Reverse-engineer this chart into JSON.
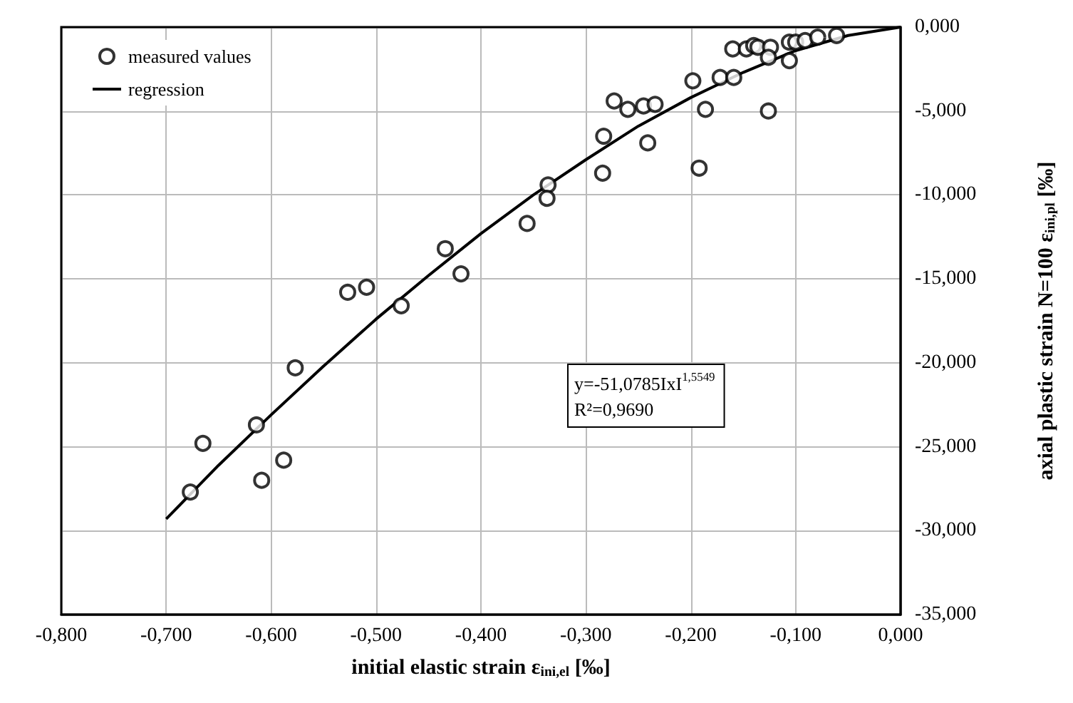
{
  "chart_data": {
    "type": "scatter",
    "xlabel": "initial elastic strain ε$_{ini,el}$ [‰]",
    "ylabel": "axial plastic strain N=100 ε$_{ini,pl}$ [‰]",
    "xlim": [
      -0.8,
      0
    ],
    "ylim": [
      -35,
      0
    ],
    "xticks": [
      {
        "value": -0.8,
        "label": "-0,800"
      },
      {
        "value": -0.7,
        "label": "-0,700"
      },
      {
        "value": -0.6,
        "label": "-0,600"
      },
      {
        "value": -0.5,
        "label": "-0,500"
      },
      {
        "value": -0.4,
        "label": "-0,400"
      },
      {
        "value": -0.3,
        "label": "-0,300"
      },
      {
        "value": -0.2,
        "label": "-0,200"
      },
      {
        "value": -0.1,
        "label": "-0,100"
      },
      {
        "value": 0,
        "label": "0,000"
      }
    ],
    "yticks": [
      {
        "value": -35,
        "label": "-35,000"
      },
      {
        "value": -30,
        "label": "-30,000"
      },
      {
        "value": -25,
        "label": "-25,000"
      },
      {
        "value": -20,
        "label": "-20,000"
      },
      {
        "value": -15,
        "label": "-15,000"
      },
      {
        "value": -10,
        "label": "-10,000"
      },
      {
        "value": -5,
        "label": "-5,000"
      },
      {
        "value": 0,
        "label": "0,000"
      }
    ],
    "grid": true,
    "legend": "top left",
    "annotations": [
      "y=-51,0785IxI$^{1,5549}$",
      "R²=0,9690"
    ],
    "series": [
      {
        "name": "measured values",
        "marker": "circle",
        "color": "#000000",
        "x": [
          -0.677,
          -0.665,
          -0.614,
          -0.609,
          -0.588,
          -0.577,
          -0.527,
          -0.509,
          -0.476,
          -0.434,
          -0.419,
          -0.356,
          -0.336,
          -0.337,
          -0.284,
          -0.283,
          -0.273,
          -0.26,
          -0.245,
          -0.234,
          -0.241,
          -0.198,
          -0.192,
          -0.186,
          -0.172,
          -0.159,
          -0.16,
          -0.147,
          -0.14,
          -0.136,
          -0.124,
          -0.126,
          -0.126,
          -0.106,
          -0.106,
          -0.1,
          -0.091,
          -0.079,
          -0.061
        ],
        "values": [
          -27.7,
          -24.8,
          -23.7,
          -27.0,
          -25.8,
          -20.3,
          -15.8,
          -15.5,
          -16.6,
          -13.2,
          -14.7,
          -11.7,
          -9.4,
          -10.2,
          -8.7,
          -6.5,
          -4.4,
          -4.9,
          -4.7,
          -4.6,
          -6.9,
          -3.2,
          -8.4,
          -4.9,
          -3.0,
          -3.0,
          -1.3,
          -1.3,
          -1.1,
          -1.2,
          -1.2,
          -1.8,
          -5.0,
          -2.0,
          -0.9,
          -0.9,
          -0.8,
          -0.6,
          -0.5
        ]
      },
      {
        "name": "regression",
        "type": "line",
        "marker": "none",
        "line_style": "solid",
        "color": "#000000",
        "x": [
          -0.7,
          -0.65,
          -0.6,
          -0.55,
          -0.5,
          -0.45,
          -0.4,
          -0.35,
          -0.3,
          -0.25,
          -0.2,
          -0.15,
          -0.1,
          -0.05,
          0
        ],
        "values": [
          -29.3,
          -26.1,
          -23.1,
          -20.2,
          -17.4,
          -14.8,
          -12.3,
          -10.0,
          -7.9,
          -5.9,
          -4.2,
          -2.7,
          -1.4,
          -0.5,
          0
        ]
      }
    ]
  }
}
